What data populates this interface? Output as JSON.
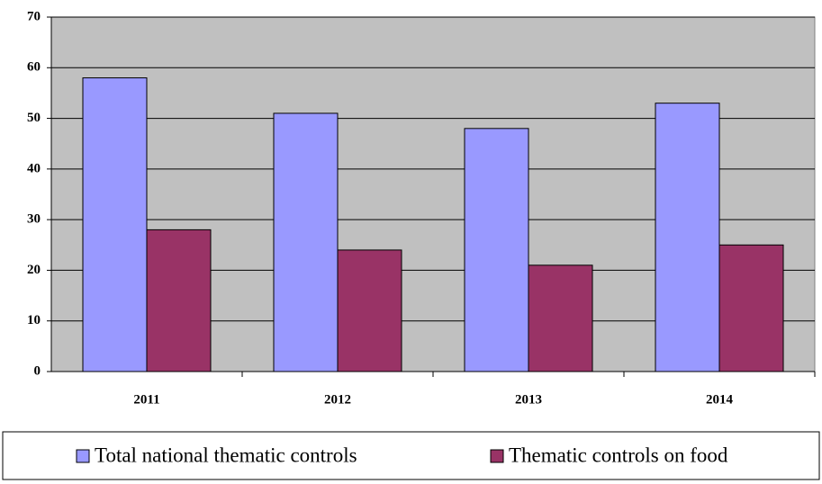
{
  "chart_data": {
    "type": "bar",
    "categories": [
      "2011",
      "2012",
      "2013",
      "2014"
    ],
    "series": [
      {
        "name": "Total national thematic controls",
        "color": "#9999ff",
        "values": [
          58,
          51,
          48,
          53
        ]
      },
      {
        "name": "Thematic controls on food",
        "color": "#993366",
        "values": [
          28,
          24,
          21,
          25
        ]
      }
    ],
    "ylim": [
      0,
      70
    ],
    "yticks": [
      0,
      10,
      20,
      30,
      40,
      50,
      60,
      70
    ],
    "grid": true,
    "legend": "bottom"
  }
}
